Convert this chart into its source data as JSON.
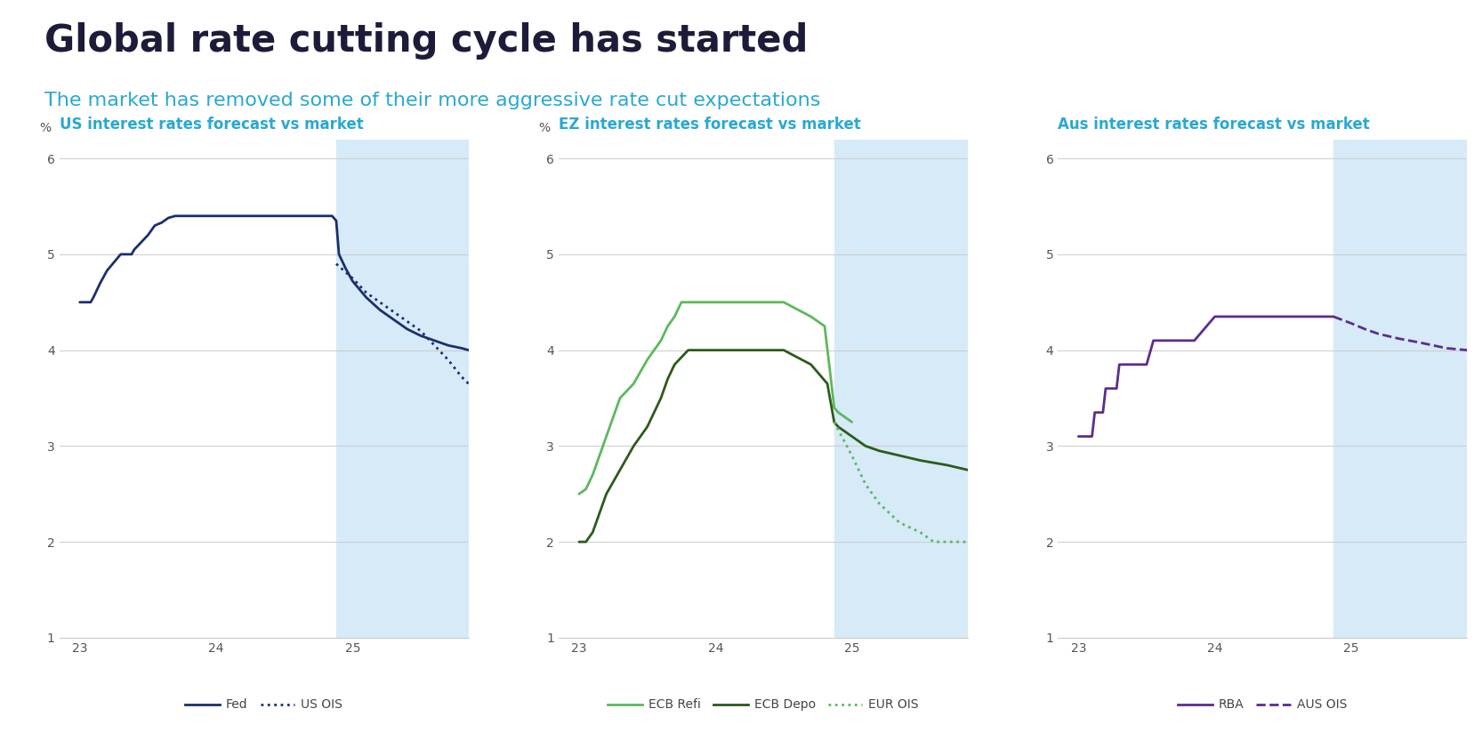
{
  "title": "Global rate cutting cycle has started",
  "subtitle": "The market has removed some of their more aggressive rate cut expectations",
  "title_color": "#1c1c3a",
  "subtitle_color": "#29a8d1",
  "background_color": "#ffffff",
  "charts": [
    {
      "title": "US interest rates forecast vs market",
      "ylabel": "%",
      "ylim": [
        1,
        6.2
      ],
      "yticks": [
        1,
        2,
        3,
        4,
        5,
        6
      ],
      "xlim": [
        22.85,
        25.85
      ],
      "xticks": [
        23,
        24,
        25
      ],
      "shade_start": 24.88,
      "series": [
        {
          "label": "Fed",
          "color": "#1b2f6e",
          "linestyle": "solid",
          "linewidth": 2.0,
          "x": [
            23.0,
            23.08,
            23.1,
            23.15,
            23.2,
            23.3,
            23.38,
            23.4,
            23.5,
            23.55,
            23.6,
            23.65,
            23.7,
            23.75,
            23.8,
            23.85,
            24.0,
            24.2,
            24.5,
            24.7,
            24.85,
            24.88,
            24.9,
            24.95,
            25.0,
            25.1,
            25.2,
            25.3,
            25.4,
            25.5,
            25.6,
            25.7,
            25.8,
            25.85
          ],
          "y": [
            4.5,
            4.5,
            4.55,
            4.7,
            4.83,
            5.0,
            5.0,
            5.05,
            5.2,
            5.3,
            5.33,
            5.38,
            5.4,
            5.4,
            5.4,
            5.4,
            5.4,
            5.4,
            5.4,
            5.4,
            5.4,
            5.35,
            5.0,
            4.85,
            4.72,
            4.55,
            4.42,
            4.32,
            4.22,
            4.15,
            4.1,
            4.05,
            4.02,
            4.0
          ]
        },
        {
          "label": "US OIS",
          "color": "#1b2f6e",
          "linestyle": "dotted",
          "linewidth": 2.0,
          "x": [
            24.88,
            25.0,
            25.1,
            25.2,
            25.3,
            25.4,
            25.5,
            25.6,
            25.7,
            25.8,
            25.85
          ],
          "y": [
            4.9,
            4.75,
            4.6,
            4.5,
            4.4,
            4.3,
            4.2,
            4.05,
            3.9,
            3.72,
            3.65
          ]
        }
      ]
    },
    {
      "title": "EZ interest rates forecast vs market",
      "ylabel": "%",
      "ylim": [
        1,
        6.2
      ],
      "yticks": [
        1,
        2,
        3,
        4,
        5,
        6
      ],
      "xlim": [
        22.85,
        25.85
      ],
      "xticks": [
        23,
        24,
        25
      ],
      "shade_start": 24.87,
      "series": [
        {
          "label": "ECB Refi",
          "color": "#5cb85c",
          "linestyle": "solid",
          "linewidth": 2.0,
          "x": [
            23.0,
            23.05,
            23.1,
            23.15,
            23.2,
            23.25,
            23.3,
            23.4,
            23.5,
            23.6,
            23.65,
            23.7,
            23.75,
            23.85,
            24.0,
            24.2,
            24.5,
            24.7,
            24.8,
            24.85,
            24.87,
            24.9,
            25.0
          ],
          "y": [
            2.5,
            2.55,
            2.7,
            2.9,
            3.1,
            3.3,
            3.5,
            3.65,
            3.9,
            4.1,
            4.25,
            4.35,
            4.5,
            4.5,
            4.5,
            4.5,
            4.5,
            4.35,
            4.25,
            3.65,
            3.4,
            3.35,
            3.25
          ]
        },
        {
          "label": "ECB Depo",
          "color": "#2d5a1b",
          "linestyle": "solid",
          "linewidth": 2.0,
          "x": [
            23.0,
            23.05,
            23.1,
            23.15,
            23.2,
            23.3,
            23.4,
            23.5,
            23.6,
            23.65,
            23.7,
            23.8,
            24.0,
            24.2,
            24.5,
            24.7,
            24.82,
            24.87,
            24.9,
            25.0,
            25.1,
            25.2,
            25.35,
            25.5,
            25.7,
            25.85
          ],
          "y": [
            2.0,
            2.0,
            2.1,
            2.3,
            2.5,
            2.75,
            3.0,
            3.2,
            3.5,
            3.7,
            3.85,
            4.0,
            4.0,
            4.0,
            4.0,
            3.85,
            3.65,
            3.25,
            3.2,
            3.1,
            3.0,
            2.95,
            2.9,
            2.85,
            2.8,
            2.75
          ]
        },
        {
          "label": "EUR OIS",
          "color": "#5cb85c",
          "linestyle": "dotted",
          "linewidth": 2.0,
          "x": [
            24.87,
            25.0,
            25.1,
            25.2,
            25.35,
            25.5,
            25.6,
            25.7,
            25.85
          ],
          "y": [
            3.25,
            2.9,
            2.6,
            2.4,
            2.2,
            2.1,
            2.0,
            2.0,
            2.0
          ]
        }
      ]
    },
    {
      "title": "Aus interest rates forecast vs market",
      "ylabel": "",
      "ylim": [
        1,
        6.2
      ],
      "yticks": [
        1,
        2,
        3,
        4,
        5,
        6
      ],
      "xlim": [
        22.85,
        25.85
      ],
      "xticks": [
        23,
        24,
        25
      ],
      "shade_start": 24.87,
      "series": [
        {
          "label": "RBA",
          "color": "#5b2d8e",
          "linestyle": "solid",
          "linewidth": 2.0,
          "x": [
            23.0,
            23.05,
            23.08,
            23.1,
            23.12,
            23.15,
            23.18,
            23.2,
            23.25,
            23.28,
            23.3,
            23.35,
            23.4,
            23.5,
            23.55,
            23.6,
            23.65,
            23.75,
            23.85,
            24.0,
            24.2,
            24.5,
            24.7,
            24.87
          ],
          "y": [
            3.1,
            3.1,
            3.1,
            3.1,
            3.35,
            3.35,
            3.35,
            3.6,
            3.6,
            3.6,
            3.85,
            3.85,
            3.85,
            3.85,
            4.1,
            4.1,
            4.1,
            4.1,
            4.1,
            4.35,
            4.35,
            4.35,
            4.35,
            4.35
          ]
        },
        {
          "label": "AUS OIS",
          "color": "#5b2d8e",
          "linestyle": "dashed",
          "linewidth": 2.0,
          "x": [
            24.87,
            25.0,
            25.1,
            25.2,
            25.35,
            25.5,
            25.6,
            25.7,
            25.85
          ],
          "y": [
            4.35,
            4.28,
            4.22,
            4.17,
            4.12,
            4.08,
            4.05,
            4.02,
            4.0
          ]
        }
      ]
    }
  ],
  "legend_items": [
    [
      {
        "label": "Fed",
        "color": "#1b2f6e",
        "linestyle": "solid"
      },
      {
        "label": "US OIS",
        "color": "#1b2f6e",
        "linestyle": "dotted"
      }
    ],
    [
      {
        "label": "ECB Refi",
        "color": "#5cb85c",
        "linestyle": "solid"
      },
      {
        "label": "ECB Depo",
        "color": "#2d5a1b",
        "linestyle": "solid"
      },
      {
        "label": "EUR OIS",
        "color": "#5cb85c",
        "linestyle": "dotted"
      }
    ],
    [
      {
        "label": "RBA",
        "color": "#5b2d8e",
        "linestyle": "solid"
      },
      {
        "label": "AUS OIS",
        "color": "#5b2d8e",
        "linestyle": "dashed"
      }
    ]
  ],
  "shade_color": "#d6eaf8",
  "grid_color": "#cccccc",
  "title_fontsize": 30,
  "subtitle_fontsize": 16,
  "chart_title_fontsize": 12,
  "tick_fontsize": 10,
  "legend_fontsize": 10
}
